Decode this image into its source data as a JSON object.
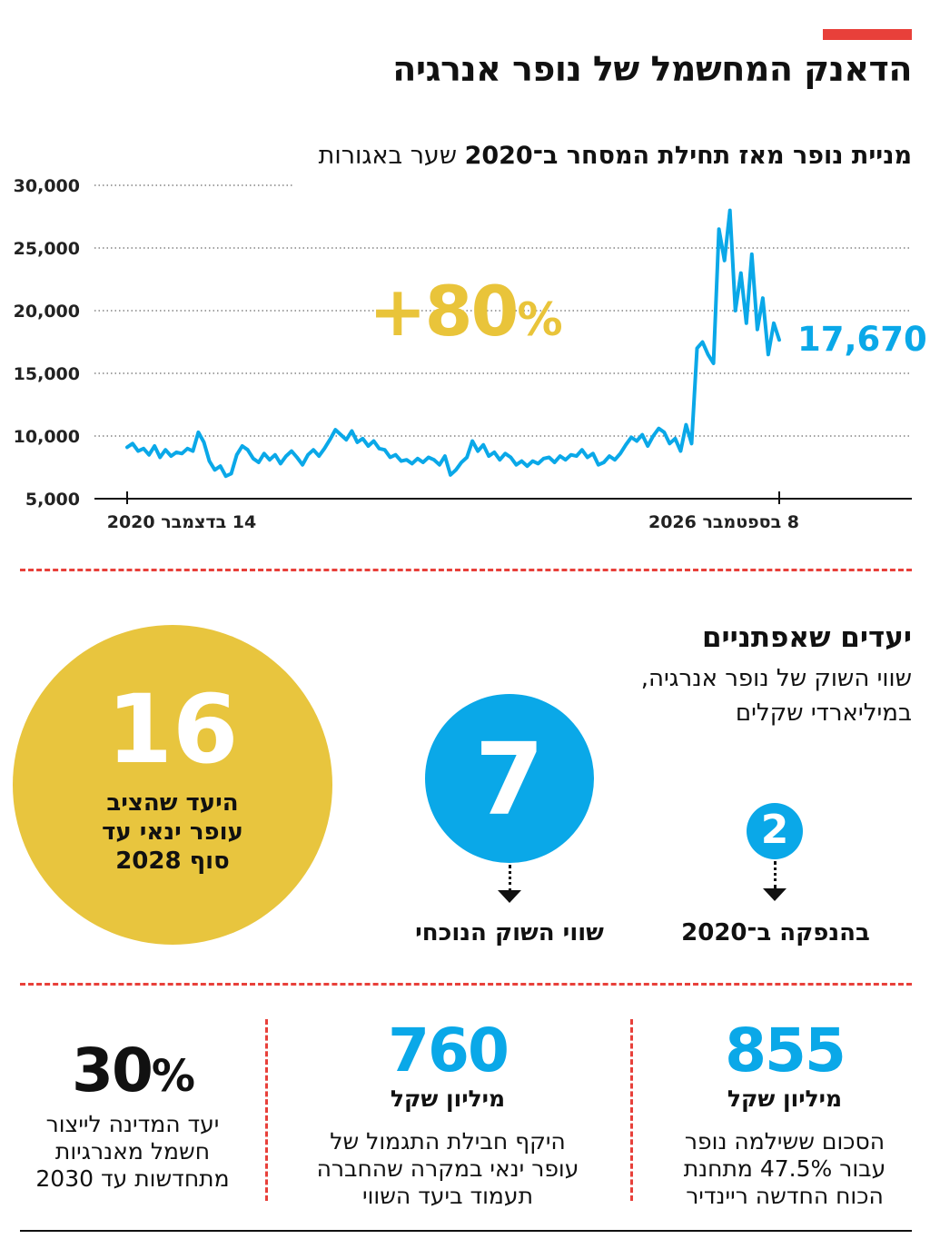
{
  "header": {
    "title": "הדאנק המחשמל של נופר אנרגיה",
    "accent_color": "#e8403a"
  },
  "chart_heading": {
    "main": "מניית נופר מאז תחילת המסחר ב־2020",
    "unit": "שער באגורות"
  },
  "chart_data": {
    "type": "line",
    "x_start": "14 בדצמבר 2020",
    "x_end": "8 בספטמבר 2026",
    "y_ticks": [
      "30,000",
      "25,000",
      "20,000",
      "15,000",
      "10,000",
      "5,000"
    ],
    "ylim": [
      5000,
      30000
    ],
    "grid": "dotted horizontal",
    "series_color": "#0aa8e8",
    "series": [
      {
        "values": [
          9100,
          9400,
          8800,
          9000,
          8500,
          9200,
          8300,
          8900,
          8400,
          8700,
          8600,
          9000,
          8800,
          10300,
          9500,
          8000,
          7300,
          7600,
          6800,
          7000,
          8500,
          9200,
          8900,
          8200,
          7900,
          8600,
          8100,
          8500,
          7800,
          8400,
          8800,
          8300,
          7700,
          8500,
          8900,
          8400,
          9000,
          9700,
          10500,
          10100,
          9700,
          10400,
          9500,
          9800,
          9200,
          9600,
          9000,
          8900,
          8300,
          8500,
          8000,
          8100,
          7800,
          8200,
          7900,
          8300,
          8100,
          7700,
          8400,
          6900,
          7300,
          7900,
          8300,
          9600,
          8800,
          9300,
          8400,
          8700,
          8100,
          8600,
          8300,
          7700,
          8000,
          7600,
          8000,
          7800,
          8200,
          8300,
          7900,
          8400,
          8100,
          8500,
          8400,
          8900,
          8300,
          8600,
          7700,
          7900,
          8400,
          8100,
          8600,
          9300,
          9900,
          9600,
          10100,
          9200,
          10000,
          10600,
          10300,
          9400,
          9800,
          8800,
          10900,
          9400,
          17000,
          17500,
          16500,
          15800,
          26500,
          24000,
          28000,
          20000,
          23000,
          19000,
          24500,
          18500,
          21000,
          16500,
          19000,
          17670
        ]
      }
    ],
    "annotation_change": "+80",
    "annotation_change_symbol": "%",
    "annotation_change_color": "#e9c43a",
    "last_value_label": "17,670"
  },
  "goals": {
    "title": "יעדים שאפתניים",
    "subtitle_line1": "שווי השוק של נופר אנרגיה,",
    "subtitle_line2": "במיליארדי שקלים",
    "big_target_value": "16",
    "big_target_text_line1": "היעד שהציב",
    "big_target_text_line2": "עופר ינאי עד",
    "big_target_text_line3": "סוף 2028",
    "current_value": "7",
    "current_label": "שווי השוק הנוכחי",
    "ipo_value": "2",
    "ipo_label": "בהנפקה ב־2020",
    "yellow": "#e8c53e",
    "blue": "#0aa8e8"
  },
  "stats": [
    {
      "number": "855",
      "unit": "מיליון שקל",
      "desc_line1": "הסכום ששילמה נופר",
      "desc_line2": "עבור 47.5% מתחנת",
      "desc_line3": "הכוח החדשה ריינדיר",
      "color": "#0aa8e8"
    },
    {
      "number": "760",
      "unit": "מיליון שקל",
      "desc_line1": "היקף חבילת התגמול של",
      "desc_line2": "עופר ינאי במקרה שהחברה",
      "desc_line3": "תעמוד ביעד השווי",
      "color": "#0aa8e8"
    },
    {
      "number": "30",
      "number_symbol": "%",
      "desc_line1": "יעד המדינה לייצור",
      "desc_line2": "חשמל מאנרגיות",
      "desc_line3": "מתחדשות עד 2030",
      "color": "#111111"
    }
  ]
}
